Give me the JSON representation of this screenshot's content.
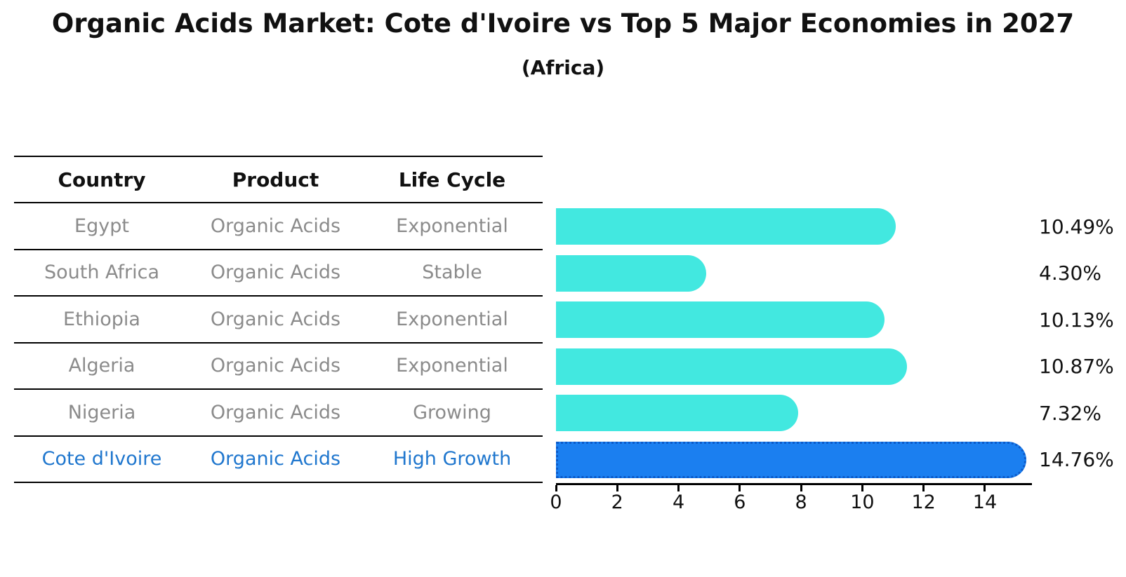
{
  "title": "Organic Acids Market: Cote d'Ivoire vs Top 5 Major Economies in 2027",
  "subtitle": "(Africa)",
  "table": {
    "headers": [
      "Country",
      "Product",
      "Life Cycle"
    ],
    "rows": [
      {
        "country": "Egypt",
        "product": "Organic Acids",
        "life_cycle": "Exponential",
        "highlight": false
      },
      {
        "country": "South Africa",
        "product": "Organic Acids",
        "life_cycle": "Stable",
        "highlight": false
      },
      {
        "country": "Ethiopia",
        "product": "Organic Acids",
        "life_cycle": "Exponential",
        "highlight": false
      },
      {
        "country": "Algeria",
        "product": "Organic Acids",
        "life_cycle": "Exponential",
        "highlight": false
      },
      {
        "country": "Nigeria",
        "product": "Organic Acids",
        "life_cycle": "Growing",
        "highlight": false
      },
      {
        "country": "Cote d'Ivoire",
        "product": "Organic Acids",
        "life_cycle": "High Growth",
        "highlight": true
      }
    ]
  },
  "chart_data": {
    "type": "bar",
    "orientation": "horizontal",
    "title": "Organic Acids Market: Cote d'Ivoire vs Top 5 Major Economies in 2027",
    "subtitle": "(Africa)",
    "categories": [
      "Egypt",
      "South Africa",
      "Ethiopia",
      "Algeria",
      "Nigeria",
      "Cote d'Ivoire"
    ],
    "values": [
      10.49,
      4.3,
      10.13,
      10.87,
      7.32,
      14.76
    ],
    "value_labels": [
      "10.49%",
      "4.30%",
      "10.13%",
      "10.87%",
      "7.32%",
      "14.76%"
    ],
    "highlight_index": 5,
    "x_ticks": [
      0,
      2,
      4,
      6,
      8,
      10,
      12,
      14
    ],
    "xlim": [
      0,
      15.5
    ],
    "xlabel": "",
    "ylabel": "",
    "grid": false,
    "legend": false
  },
  "colors": {
    "bar_default": "#42e8e0",
    "bar_highlight": "#1b7ff0",
    "bar_highlight_edge": "#0c5ac8",
    "highlight_text": "#2077ce",
    "muted_text": "#8b8b8b",
    "axis": "#000000"
  }
}
